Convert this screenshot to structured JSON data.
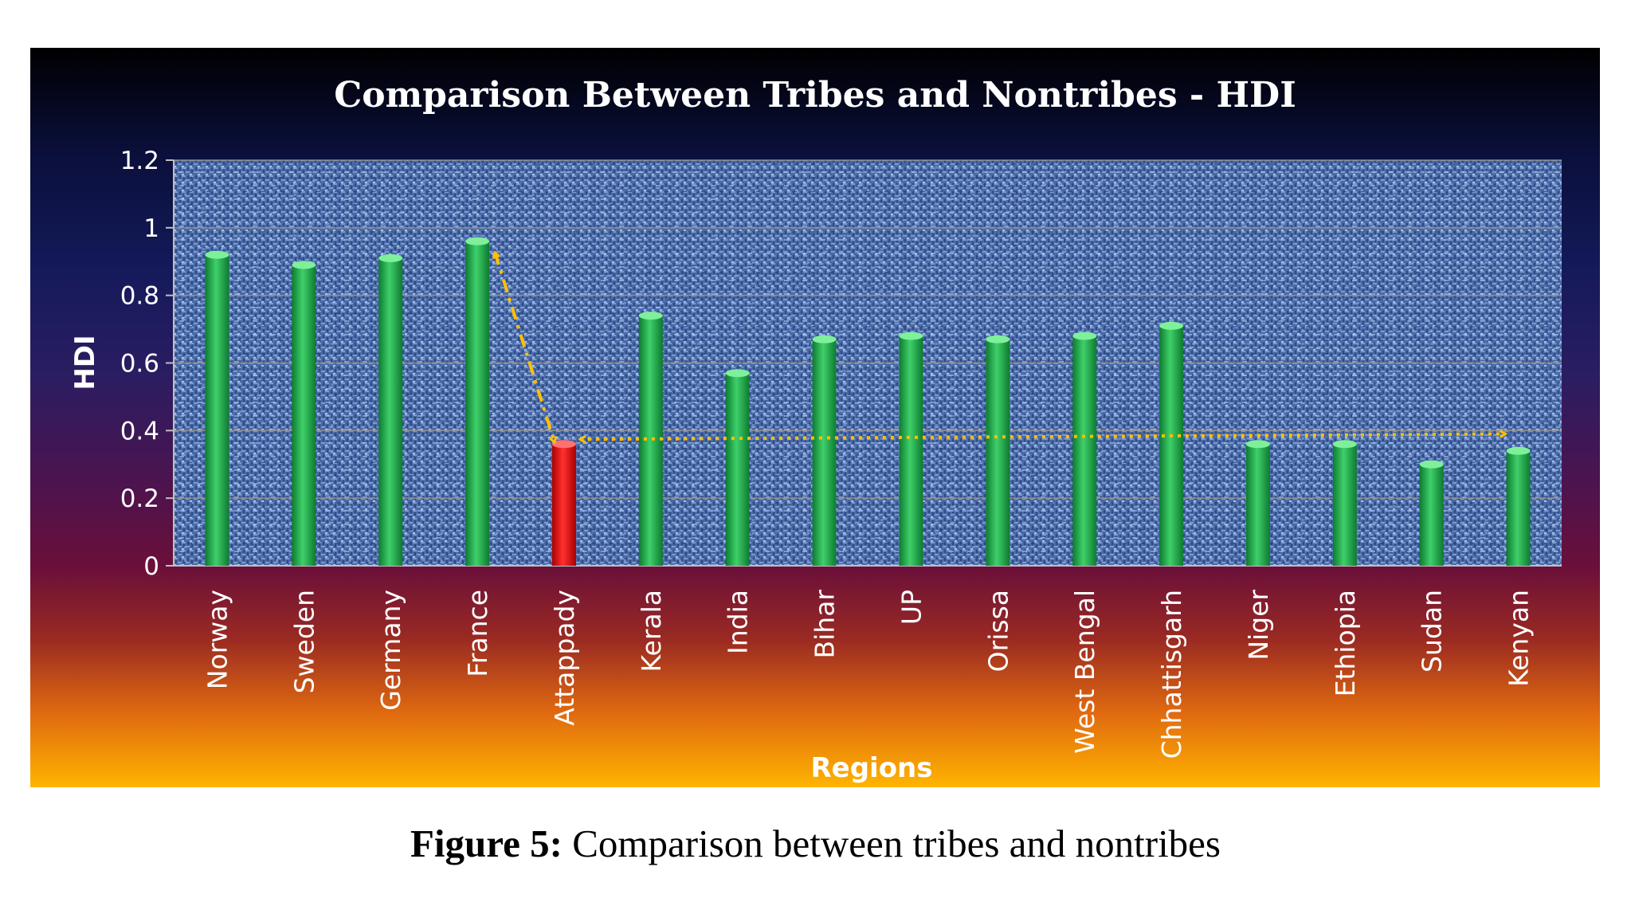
{
  "chart_data": {
    "type": "bar",
    "title": "Comparison Between Tribes and Nontribes - HDI",
    "xlabel": "Regions",
    "ylabel": "HDI",
    "ylim": [
      0,
      1.2
    ],
    "yticks": [
      "0",
      "0.2",
      "0.4",
      "0.6",
      "0.8",
      "1",
      "1.2"
    ],
    "grid": true,
    "categories": [
      "Norway",
      "Sweden",
      "Germany",
      "France",
      "Attappady",
      "Kerala",
      "India",
      "Bihar",
      "UP",
      "Orissa",
      "West Bengal",
      "Chhattisgarh",
      "Niger",
      "Ethiopia",
      "Sudan",
      "Kenyan"
    ],
    "values": [
      0.92,
      0.89,
      0.91,
      0.96,
      0.36,
      0.74,
      0.57,
      0.67,
      0.68,
      0.67,
      0.68,
      0.71,
      0.36,
      0.36,
      0.3,
      0.34
    ],
    "bar_colors": [
      "#1faa4a",
      "#1faa4a",
      "#1faa4a",
      "#1faa4a",
      "#ee1111",
      "#1faa4a",
      "#1faa4a",
      "#1faa4a",
      "#1faa4a",
      "#1faa4a",
      "#1faa4a",
      "#1faa4a",
      "#1faa4a",
      "#1faa4a",
      "#1faa4a",
      "#1faa4a"
    ],
    "annotations": [
      {
        "type": "dashed-double-arrow",
        "from_category": "France",
        "from_value": 0.96,
        "to_category": "Attappady",
        "to_value": 0.36,
        "color": "#ffc000"
      },
      {
        "type": "dotted-double-arrow",
        "from_category": "Attappady",
        "from_value": 0.36,
        "to_category": "Kenyan",
        "to_value": 0.39,
        "color": "#ffc000"
      }
    ]
  },
  "caption": {
    "label": "Figure 5:",
    "text": " Comparison between tribes and nontribes"
  }
}
